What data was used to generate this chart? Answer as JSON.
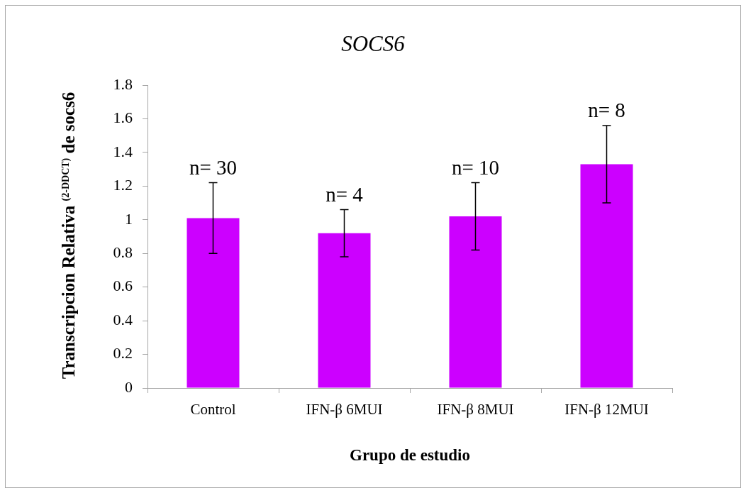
{
  "chart_data": {
    "type": "bar",
    "title": "SOCS6",
    "xlabel": "Grupo de estudio",
    "ylabel": "Transcripcion Relativa $^{(2-DDCT)}$ de socs6",
    "categories": [
      "Control",
      "IFN-β 6MUI",
      "IFN-β 8MUI",
      "IFN-β 12MUI"
    ],
    "values": [
      1.01,
      0.92,
      1.02,
      1.33
    ],
    "errors": [
      0.21,
      0.14,
      0.2,
      0.23
    ],
    "color": "#cc00ff",
    "ylim": [
      0,
      1.8
    ],
    "yticks": [
      0,
      0.2,
      0.4,
      0.6,
      0.8,
      1,
      1.2,
      1.4,
      1.6,
      1.8
    ],
    "annotations": [
      "n= 30",
      "n= 4",
      "n= 10",
      "n= 8"
    ]
  }
}
